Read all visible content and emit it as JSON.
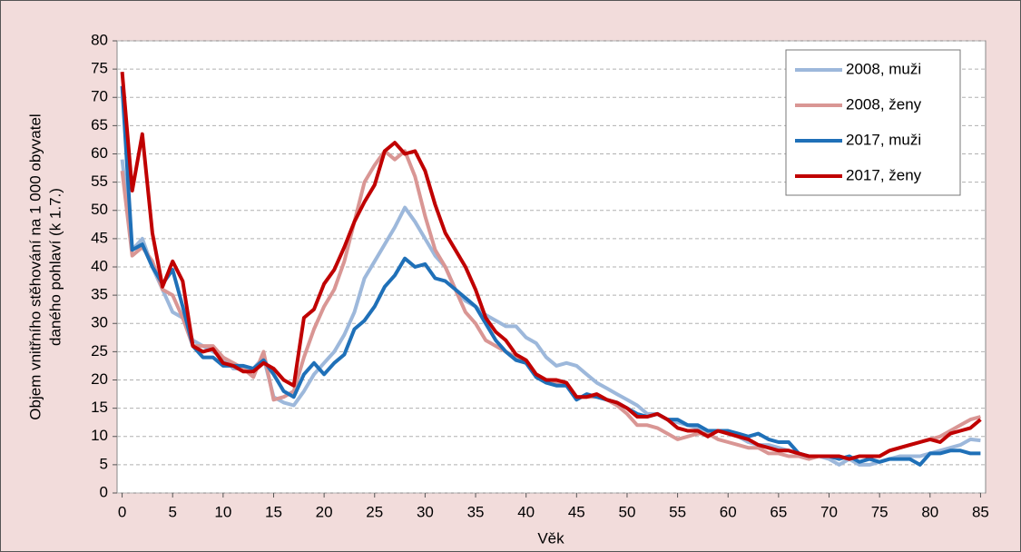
{
  "chart_data": {
    "type": "line",
    "ylabel": [
      "Objem vnitřního stěhování na 1 000 obyvatel",
      "daného pohlaví (k 1.7.)"
    ],
    "xlabel": "Věk",
    "x": [
      0,
      1,
      2,
      3,
      4,
      5,
      6,
      7,
      8,
      9,
      10,
      11,
      12,
      13,
      14,
      15,
      16,
      17,
      18,
      19,
      20,
      21,
      22,
      23,
      24,
      25,
      26,
      27,
      28,
      29,
      30,
      31,
      32,
      33,
      34,
      35,
      36,
      37,
      38,
      39,
      40,
      41,
      42,
      43,
      44,
      45,
      46,
      47,
      48,
      49,
      50,
      51,
      52,
      53,
      54,
      55,
      56,
      57,
      58,
      59,
      60,
      61,
      62,
      63,
      64,
      65,
      66,
      67,
      68,
      69,
      70,
      71,
      72,
      73,
      74,
      75,
      76,
      77,
      78,
      79,
      80,
      81,
      82,
      83,
      84,
      85
    ],
    "xlim": [
      -0.5,
      85.5
    ],
    "xticks": [
      0,
      5,
      10,
      15,
      20,
      25,
      30,
      35,
      40,
      45,
      50,
      55,
      60,
      65,
      70,
      75,
      80,
      85
    ],
    "ylim": [
      0,
      80
    ],
    "yticks": [
      0,
      5,
      10,
      15,
      20,
      25,
      30,
      35,
      40,
      45,
      50,
      55,
      60,
      65,
      70,
      75,
      80
    ],
    "grid": true,
    "legend": "upper-right",
    "series": [
      {
        "name": "2008, muži",
        "color": "#9db8db",
        "width": 4,
        "values": [
          59,
          43,
          45,
          40,
          36,
          32,
          31,
          27,
          26,
          25,
          24,
          22,
          22,
          22,
          24,
          17,
          16,
          15.5,
          18,
          21,
          23,
          25,
          28,
          32,
          38,
          41,
          44,
          47,
          50.5,
          48,
          45,
          42,
          40,
          36,
          34,
          33,
          31.5,
          30.5,
          29.5,
          29.5,
          27.5,
          26.5,
          24,
          22.5,
          23,
          22.5,
          21,
          19.5,
          18.5,
          17.5,
          16.5,
          15.5,
          14,
          14,
          13,
          12.5,
          12,
          11.5,
          11,
          11,
          10.5,
          10,
          9,
          8.5,
          8.5,
          8,
          7.5,
          7,
          6.5,
          6.5,
          6,
          5,
          6,
          5,
          5,
          5.5,
          6,
          6.5,
          6.5,
          6.5,
          7,
          7.5,
          8,
          8.5,
          9.5,
          9.3
        ]
      },
      {
        "name": "2008, ženy",
        "color": "#d99694",
        "width": 4,
        "values": [
          57,
          42,
          43.5,
          41,
          36,
          35,
          31,
          26,
          26,
          26,
          24,
          23,
          22,
          20.5,
          25,
          16.5,
          17,
          18,
          24,
          29,
          33,
          36,
          41,
          48,
          55,
          58,
          60.5,
          59,
          60.5,
          56,
          49,
          43,
          40,
          36,
          32,
          30,
          27,
          26,
          25,
          24,
          23,
          21,
          20,
          19.5,
          19,
          17,
          17,
          17,
          16.5,
          15.5,
          14,
          12,
          12,
          11.5,
          10.5,
          9.5,
          10,
          10.5,
          10.5,
          9.5,
          9,
          8.5,
          8,
          8,
          7,
          7,
          6.5,
          6.5,
          6,
          6.5,
          6.5,
          6.5,
          6,
          6.5,
          6.5,
          6.5,
          7.5,
          8,
          8.5,
          9,
          9.5,
          10,
          11,
          12,
          13,
          13.5
        ]
      },
      {
        "name": "2017, muži",
        "color": "#1f70b8",
        "width": 4,
        "values": [
          72,
          43,
          44,
          40,
          37,
          39.5,
          33,
          26,
          24,
          24,
          22.5,
          22.5,
          22.5,
          22,
          23.5,
          21,
          18,
          17,
          21,
          23,
          21,
          23,
          24.5,
          29,
          30.5,
          33,
          36.5,
          38.5,
          41.5,
          40,
          40.5,
          38,
          37.5,
          36,
          34.5,
          33,
          30,
          27,
          25,
          23.5,
          23,
          20.5,
          19.5,
          19,
          19,
          16.5,
          17.5,
          17,
          16.5,
          16,
          15,
          14,
          13.5,
          14,
          13,
          13,
          12,
          12,
          11,
          11,
          11,
          10.5,
          10,
          10.5,
          9.5,
          9,
          9,
          7,
          6.5,
          6.5,
          6.5,
          6,
          6.5,
          5.5,
          6,
          5.5,
          6,
          6,
          6,
          5,
          7,
          7,
          7.5,
          7.5,
          7,
          7
        ]
      },
      {
        "name": "2017, ženy",
        "color": "#c00000",
        "width": 4,
        "values": [
          74.5,
          53.5,
          63.5,
          46,
          36.5,
          41,
          37.5,
          26,
          25,
          25.5,
          23,
          22.5,
          21.5,
          21.5,
          23,
          22,
          20,
          19,
          31,
          32.5,
          37,
          39.5,
          43.5,
          48,
          51.5,
          54.5,
          60.5,
          62,
          60,
          60.5,
          57,
          51,
          46,
          43,
          40,
          36,
          31,
          28.5,
          27,
          24.5,
          23.5,
          21,
          20,
          20,
          19.5,
          17,
          17,
          17.5,
          16.5,
          16,
          15,
          13.5,
          13.5,
          14,
          13,
          11.5,
          11,
          11,
          10,
          11,
          10.5,
          10,
          9.5,
          8.5,
          8,
          7.5,
          7.5,
          7,
          6.5,
          6.5,
          6.5,
          6.5,
          6,
          6.5,
          6.5,
          6.5,
          7.5,
          8,
          8.5,
          9,
          9.5,
          9,
          10.5,
          11,
          11.5,
          13
        ]
      }
    ]
  }
}
